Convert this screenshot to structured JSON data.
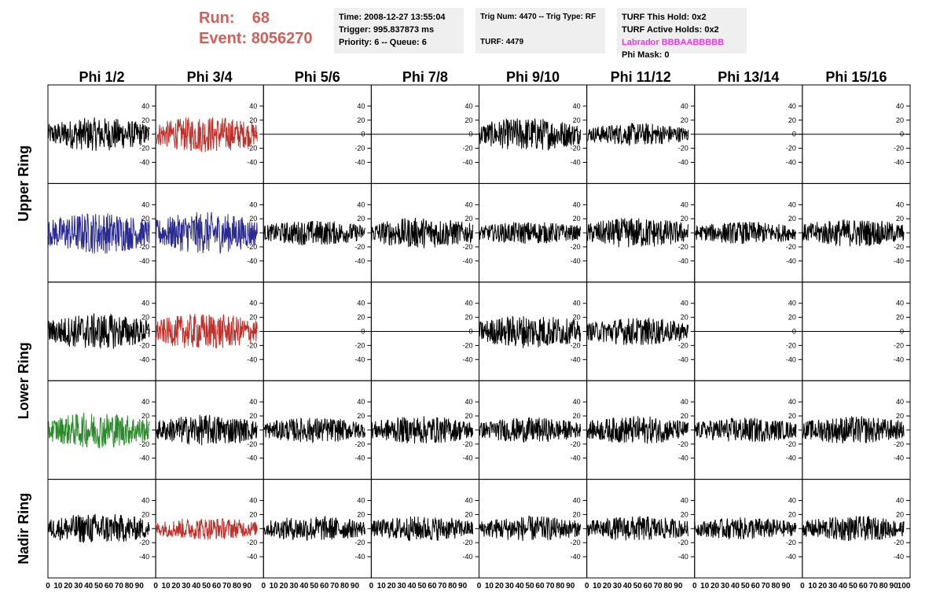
{
  "header": {
    "run_label": "Run:",
    "run_value": "68",
    "event_label": "Event:",
    "event_value": "8056270"
  },
  "info_time": {
    "time": "Time: 2008-12-27 13:55:04",
    "trigger": "Trigger: 995.837873 ms",
    "priority": "Priority: 6 -- Queue: 6"
  },
  "info_trig": {
    "trig": "Trig Num: 4470 -- Trig Type: RF",
    "turf": "TURF: 4479"
  },
  "info_turf": {
    "this_hold": "TURF This Hold: 0x2",
    "active_holds": "TURF Active Holds: 0x2",
    "labrador": "Labrador BBBAABBBBB",
    "phi_mask": "Phi Mask: 0"
  },
  "chart_data": {
    "type": "line",
    "columns": [
      "Phi 1/2",
      "Phi 3/4",
      "Phi 5/6",
      "Phi 7/8",
      "Phi 9/10",
      "Phi 11/12",
      "Phi 13/14",
      "Phi 15/16"
    ],
    "row_groups": [
      {
        "label": "Upper Ring",
        "rows": [
          0,
          1
        ]
      },
      {
        "label": "Lower Ring",
        "rows": [
          2,
          3
        ]
      },
      {
        "label": "Nadir Ring",
        "rows": [
          4
        ]
      }
    ],
    "xlim": [
      0,
      100
    ],
    "x_ticks": [
      0,
      10,
      20,
      30,
      40,
      50,
      60,
      70,
      80,
      90,
      100
    ],
    "ylim": [
      -50,
      50
    ],
    "y_ticks": [
      -40,
      -20,
      0,
      20,
      40
    ],
    "colors": {
      "default": "#000000",
      "red": "#c0302a",
      "blue": "#2a2a90",
      "green": "#2a8a2a"
    },
    "panels": [
      [
        {
          "amp": 24,
          "color": "default",
          "flat": false
        },
        {
          "amp": 26,
          "color": "red",
          "flat": false
        },
        {
          "amp": 0,
          "color": "default",
          "flat": true
        },
        {
          "amp": 0,
          "color": "default",
          "flat": true
        },
        {
          "amp": 24,
          "color": "default",
          "flat": false
        },
        {
          "amp": 16,
          "color": "default",
          "flat": false
        },
        {
          "amp": 0,
          "color": "default",
          "flat": true
        },
        {
          "amp": 0,
          "color": "default",
          "flat": true
        }
      ],
      [
        {
          "amp": 30,
          "color": "blue",
          "flat": false
        },
        {
          "amp": 30,
          "color": "blue",
          "flat": false
        },
        {
          "amp": 18,
          "color": "default",
          "flat": false
        },
        {
          "amp": 22,
          "color": "default",
          "flat": false
        },
        {
          "amp": 16,
          "color": "default",
          "flat": false
        },
        {
          "amp": 22,
          "color": "default",
          "flat": false
        },
        {
          "amp": 16,
          "color": "default",
          "flat": false
        },
        {
          "amp": 20,
          "color": "default",
          "flat": false
        }
      ],
      [
        {
          "amp": 26,
          "color": "default",
          "flat": false
        },
        {
          "amp": 26,
          "color": "red",
          "flat": false
        },
        {
          "amp": 0,
          "color": "default",
          "flat": true
        },
        {
          "amp": 0,
          "color": "default",
          "flat": true
        },
        {
          "amp": 24,
          "color": "default",
          "flat": false
        },
        {
          "amp": 20,
          "color": "default",
          "flat": false
        },
        {
          "amp": 0,
          "color": "default",
          "flat": true
        },
        {
          "amp": 0,
          "color": "default",
          "flat": true
        }
      ],
      [
        {
          "amp": 26,
          "color": "green",
          "flat": false
        },
        {
          "amp": 22,
          "color": "default",
          "flat": false
        },
        {
          "amp": 18,
          "color": "default",
          "flat": false
        },
        {
          "amp": 20,
          "color": "default",
          "flat": false
        },
        {
          "amp": 18,
          "color": "default",
          "flat": false
        },
        {
          "amp": 20,
          "color": "default",
          "flat": false
        },
        {
          "amp": 18,
          "color": "default",
          "flat": false
        },
        {
          "amp": 20,
          "color": "default",
          "flat": false
        }
      ],
      [
        {
          "amp": 22,
          "color": "default",
          "flat": false
        },
        {
          "amp": 16,
          "color": "red",
          "flat": false
        },
        {
          "amp": 18,
          "color": "default",
          "flat": false
        },
        {
          "amp": 18,
          "color": "default",
          "flat": false
        },
        {
          "amp": 18,
          "color": "default",
          "flat": false
        },
        {
          "amp": 18,
          "color": "default",
          "flat": false
        },
        {
          "amp": 16,
          "color": "default",
          "flat": false
        },
        {
          "amp": 18,
          "color": "default",
          "flat": false
        }
      ]
    ]
  }
}
